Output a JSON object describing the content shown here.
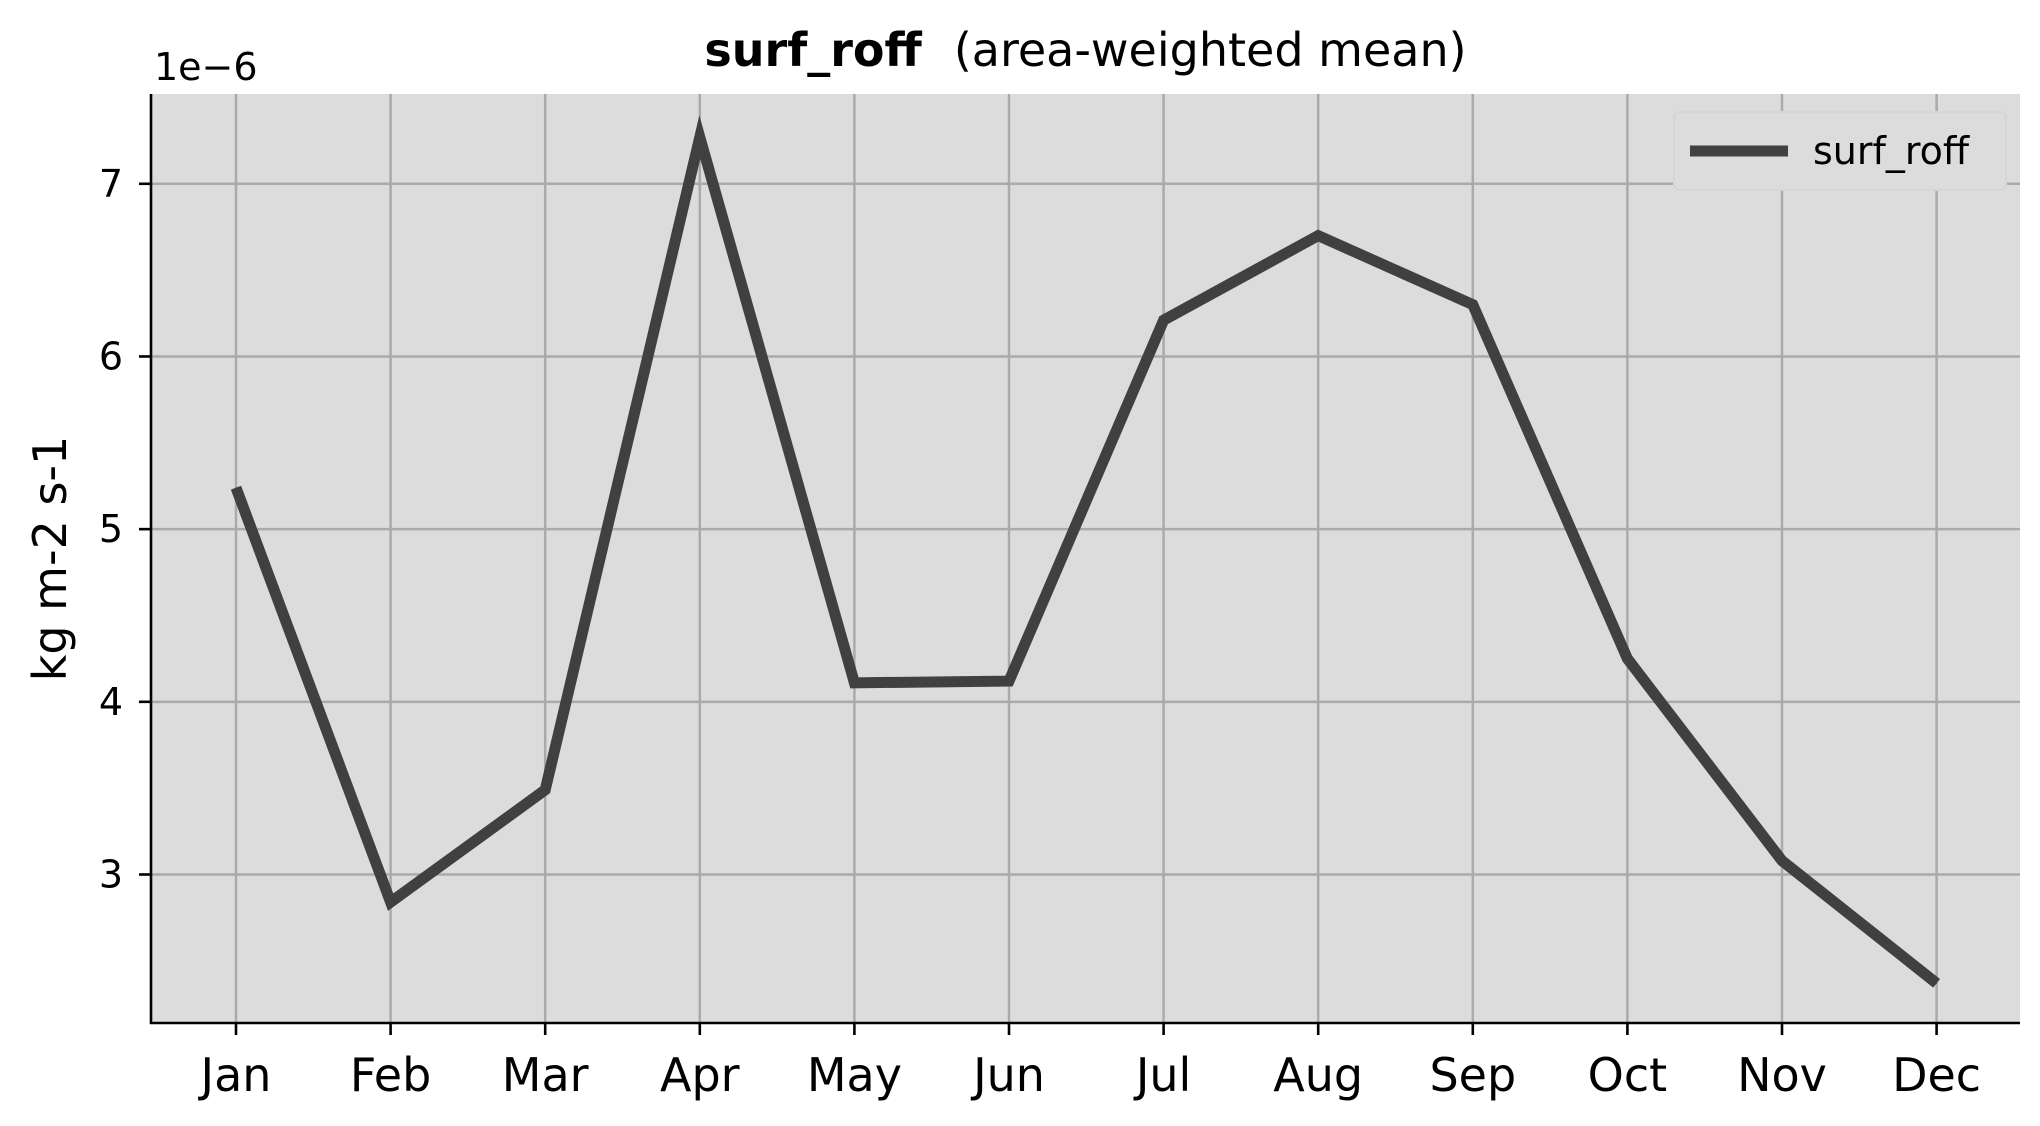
{
  "chart_data": {
    "type": "line",
    "title_bold": "surf_roff",
    "title_rest": "(area-weighted mean)",
    "xlabel": "",
    "ylabel": "kg m-2 s-1",
    "offset_label": "1e−6",
    "categories": [
      "Jan",
      "Feb",
      "Mar",
      "Apr",
      "May",
      "Jun",
      "Jul",
      "Aug",
      "Sep",
      "Oct",
      "Nov",
      "Dec"
    ],
    "series": [
      {
        "name": "surf_roff",
        "values": [
          5.24,
          2.84,
          3.49,
          7.27,
          4.11,
          4.12,
          6.21,
          6.7,
          6.3,
          4.25,
          3.08,
          2.37
        ],
        "color": "#404040"
      }
    ],
    "yticks": [
      3,
      4,
      5,
      6,
      7
    ],
    "ylim": [
      2.14,
      7.52
    ],
    "grid": true,
    "legend_position": "top-right",
    "colors": {
      "plot_background": "#dcdcdc",
      "grid": "#aaaaaa",
      "line": "#404040"
    }
  }
}
